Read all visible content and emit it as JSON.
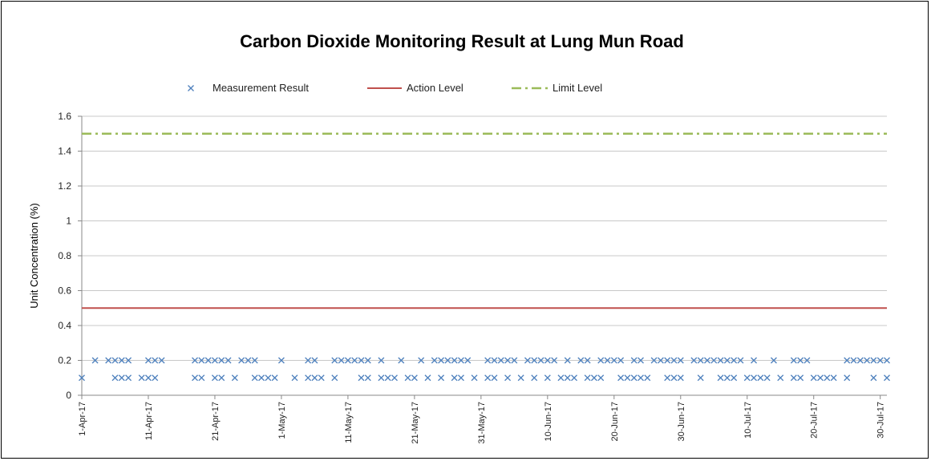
{
  "chart_data": {
    "type": "scatter",
    "title": "Carbon Dioxide Monitoring Result at Lung Mun Road",
    "ylabel": "Unit Concentration (%)",
    "xlabel": "",
    "ylim": [
      0,
      1.6
    ],
    "yticks": [
      "0",
      "0.2",
      "0.4",
      "0.6",
      "0.8",
      "1",
      "1.2",
      "1.4",
      "1.6"
    ],
    "x_range": [
      "2017-04-01",
      "2017-07-31"
    ],
    "x_tick_labels": [
      {
        "date": "2017-04-01",
        "label": "1-Apr-17"
      },
      {
        "date": "2017-04-11",
        "label": "11-Apr-17"
      },
      {
        "date": "2017-04-21",
        "label": "21-Apr-17"
      },
      {
        "date": "2017-05-01",
        "label": "1-May-17"
      },
      {
        "date": "2017-05-11",
        "label": "11-May-17"
      },
      {
        "date": "2017-05-21",
        "label": "21-May-17"
      },
      {
        "date": "2017-05-31",
        "label": "31-May-17"
      },
      {
        "date": "2017-06-10",
        "label": "10-Jun-17"
      },
      {
        "date": "2017-06-20",
        "label": "20-Jun-17"
      },
      {
        "date": "2017-06-30",
        "label": "30-Jun-17"
      },
      {
        "date": "2017-07-10",
        "label": "10-Jul-17"
      },
      {
        "date": "2017-07-20",
        "label": "20-Jul-17"
      },
      {
        "date": "2017-07-30",
        "label": "30-Jul-17"
      }
    ],
    "grid": {
      "horizontal": true,
      "vertical": false
    },
    "legend_position": "top",
    "legend": [
      {
        "label": "Measurement Result",
        "marker": "x",
        "color": "#4F81BD"
      },
      {
        "label": "Action Level",
        "line": "solid",
        "color": "#C0504D"
      },
      {
        "label": "Limit Level",
        "line": "dash-dot",
        "color": "#9BBB59"
      }
    ],
    "reference_lines": [
      {
        "name": "Action Level",
        "y": 0.5,
        "color": "#C0504D",
        "style": "solid"
      },
      {
        "name": "Limit Level",
        "y": 1.5,
        "color": "#9BBB59",
        "style": "dash-dot"
      }
    ],
    "series": [
      {
        "name": "Measurement Result",
        "marker": "x",
        "color": "#4F81BD",
        "points": [
          [
            "2017-04-01",
            0.1
          ],
          [
            "2017-04-03",
            0.2
          ],
          [
            "2017-04-05",
            0.2
          ],
          [
            "2017-04-06",
            0.2
          ],
          [
            "2017-04-06",
            0.1
          ],
          [
            "2017-04-07",
            0.2
          ],
          [
            "2017-04-07",
            0.1
          ],
          [
            "2017-04-08",
            0.2
          ],
          [
            "2017-04-08",
            0.1
          ],
          [
            "2017-04-10",
            0.1
          ],
          [
            "2017-04-11",
            0.1
          ],
          [
            "2017-04-11",
            0.2
          ],
          [
            "2017-04-12",
            0.2
          ],
          [
            "2017-04-12",
            0.1
          ],
          [
            "2017-04-13",
            0.2
          ],
          [
            "2017-04-18",
            0.2
          ],
          [
            "2017-04-18",
            0.1
          ],
          [
            "2017-04-19",
            0.2
          ],
          [
            "2017-04-19",
            0.1
          ],
          [
            "2017-04-20",
            0.2
          ],
          [
            "2017-04-21",
            0.2
          ],
          [
            "2017-04-21",
            0.1
          ],
          [
            "2017-04-22",
            0.2
          ],
          [
            "2017-04-22",
            0.1
          ],
          [
            "2017-04-23",
            0.2
          ],
          [
            "2017-04-24",
            0.1
          ],
          [
            "2017-04-25",
            0.2
          ],
          [
            "2017-04-26",
            0.2
          ],
          [
            "2017-04-27",
            0.2
          ],
          [
            "2017-04-27",
            0.1
          ],
          [
            "2017-04-28",
            0.1
          ],
          [
            "2017-04-29",
            0.1
          ],
          [
            "2017-04-30",
            0.1
          ],
          [
            "2017-05-01",
            0.2
          ],
          [
            "2017-05-03",
            0.1
          ],
          [
            "2017-05-05",
            0.2
          ],
          [
            "2017-05-05",
            0.1
          ],
          [
            "2017-05-06",
            0.2
          ],
          [
            "2017-05-06",
            0.1
          ],
          [
            "2017-05-07",
            0.1
          ],
          [
            "2017-05-09",
            0.1
          ],
          [
            "2017-05-09",
            0.2
          ],
          [
            "2017-05-10",
            0.2
          ],
          [
            "2017-05-11",
            0.2
          ],
          [
            "2017-05-12",
            0.2
          ],
          [
            "2017-05-13",
            0.2
          ],
          [
            "2017-05-13",
            0.1
          ],
          [
            "2017-05-14",
            0.2
          ],
          [
            "2017-05-14",
            0.1
          ],
          [
            "2017-05-16",
            0.2
          ],
          [
            "2017-05-16",
            0.1
          ],
          [
            "2017-05-17",
            0.1
          ],
          [
            "2017-05-18",
            0.1
          ],
          [
            "2017-05-19",
            0.2
          ],
          [
            "2017-05-20",
            0.1
          ],
          [
            "2017-05-21",
            0.1
          ],
          [
            "2017-05-22",
            0.2
          ],
          [
            "2017-05-23",
            0.1
          ],
          [
            "2017-05-24",
            0.2
          ],
          [
            "2017-05-25",
            0.2
          ],
          [
            "2017-05-25",
            0.1
          ],
          [
            "2017-05-26",
            0.2
          ],
          [
            "2017-05-27",
            0.2
          ],
          [
            "2017-05-27",
            0.1
          ],
          [
            "2017-05-28",
            0.2
          ],
          [
            "2017-05-28",
            0.1
          ],
          [
            "2017-05-29",
            0.2
          ],
          [
            "2017-05-30",
            0.1
          ],
          [
            "2017-06-01",
            0.2
          ],
          [
            "2017-06-01",
            0.1
          ],
          [
            "2017-06-02",
            0.2
          ],
          [
            "2017-06-02",
            0.1
          ],
          [
            "2017-06-03",
            0.2
          ],
          [
            "2017-06-04",
            0.2
          ],
          [
            "2017-06-04",
            0.1
          ],
          [
            "2017-06-05",
            0.2
          ],
          [
            "2017-06-06",
            0.1
          ],
          [
            "2017-06-07",
            0.2
          ],
          [
            "2017-06-08",
            0.2
          ],
          [
            "2017-06-08",
            0.1
          ],
          [
            "2017-06-09",
            0.2
          ],
          [
            "2017-06-10",
            0.2
          ],
          [
            "2017-06-10",
            0.1
          ],
          [
            "2017-06-11",
            0.2
          ],
          [
            "2017-06-12",
            0.1
          ],
          [
            "2017-06-13",
            0.2
          ],
          [
            "2017-06-13",
            0.1
          ],
          [
            "2017-06-14",
            0.1
          ],
          [
            "2017-06-15",
            0.2
          ],
          [
            "2017-06-16",
            0.2
          ],
          [
            "2017-06-16",
            0.1
          ],
          [
            "2017-06-17",
            0.1
          ],
          [
            "2017-06-18",
            0.2
          ],
          [
            "2017-06-18",
            0.1
          ],
          [
            "2017-06-19",
            0.2
          ],
          [
            "2017-06-20",
            0.2
          ],
          [
            "2017-06-21",
            0.2
          ],
          [
            "2017-06-21",
            0.1
          ],
          [
            "2017-06-22",
            0.1
          ],
          [
            "2017-06-23",
            0.1
          ],
          [
            "2017-06-23",
            0.2
          ],
          [
            "2017-06-24",
            0.2
          ],
          [
            "2017-06-24",
            0.1
          ],
          [
            "2017-06-25",
            0.1
          ],
          [
            "2017-06-26",
            0.2
          ],
          [
            "2017-06-27",
            0.2
          ],
          [
            "2017-06-28",
            0.2
          ],
          [
            "2017-06-28",
            0.1
          ],
          [
            "2017-06-29",
            0.2
          ],
          [
            "2017-06-29",
            0.1
          ],
          [
            "2017-06-30",
            0.2
          ],
          [
            "2017-06-30",
            0.1
          ],
          [
            "2017-07-02",
            0.2
          ],
          [
            "2017-07-03",
            0.2
          ],
          [
            "2017-07-03",
            0.1
          ],
          [
            "2017-07-04",
            0.2
          ],
          [
            "2017-07-05",
            0.2
          ],
          [
            "2017-07-06",
            0.2
          ],
          [
            "2017-07-06",
            0.1
          ],
          [
            "2017-07-07",
            0.2
          ],
          [
            "2017-07-07",
            0.1
          ],
          [
            "2017-07-08",
            0.2
          ],
          [
            "2017-07-08",
            0.1
          ],
          [
            "2017-07-09",
            0.2
          ],
          [
            "2017-07-10",
            0.1
          ],
          [
            "2017-07-11",
            0.2
          ],
          [
            "2017-07-11",
            0.1
          ],
          [
            "2017-07-12",
            0.1
          ],
          [
            "2017-07-13",
            0.1
          ],
          [
            "2017-07-14",
            0.2
          ],
          [
            "2017-07-15",
            0.1
          ],
          [
            "2017-07-17",
            0.2
          ],
          [
            "2017-07-17",
            0.1
          ],
          [
            "2017-07-18",
            0.2
          ],
          [
            "2017-07-18",
            0.1
          ],
          [
            "2017-07-19",
            0.2
          ],
          [
            "2017-07-20",
            0.1
          ],
          [
            "2017-07-21",
            0.1
          ],
          [
            "2017-07-22",
            0.1
          ],
          [
            "2017-07-23",
            0.1
          ],
          [
            "2017-07-25",
            0.2
          ],
          [
            "2017-07-25",
            0.1
          ],
          [
            "2017-07-26",
            0.2
          ],
          [
            "2017-07-27",
            0.2
          ],
          [
            "2017-07-28",
            0.2
          ],
          [
            "2017-07-29",
            0.2
          ],
          [
            "2017-07-29",
            0.1
          ],
          [
            "2017-07-30",
            0.2
          ],
          [
            "2017-07-31",
            0.2
          ],
          [
            "2017-07-31",
            0.1
          ]
        ]
      }
    ]
  }
}
